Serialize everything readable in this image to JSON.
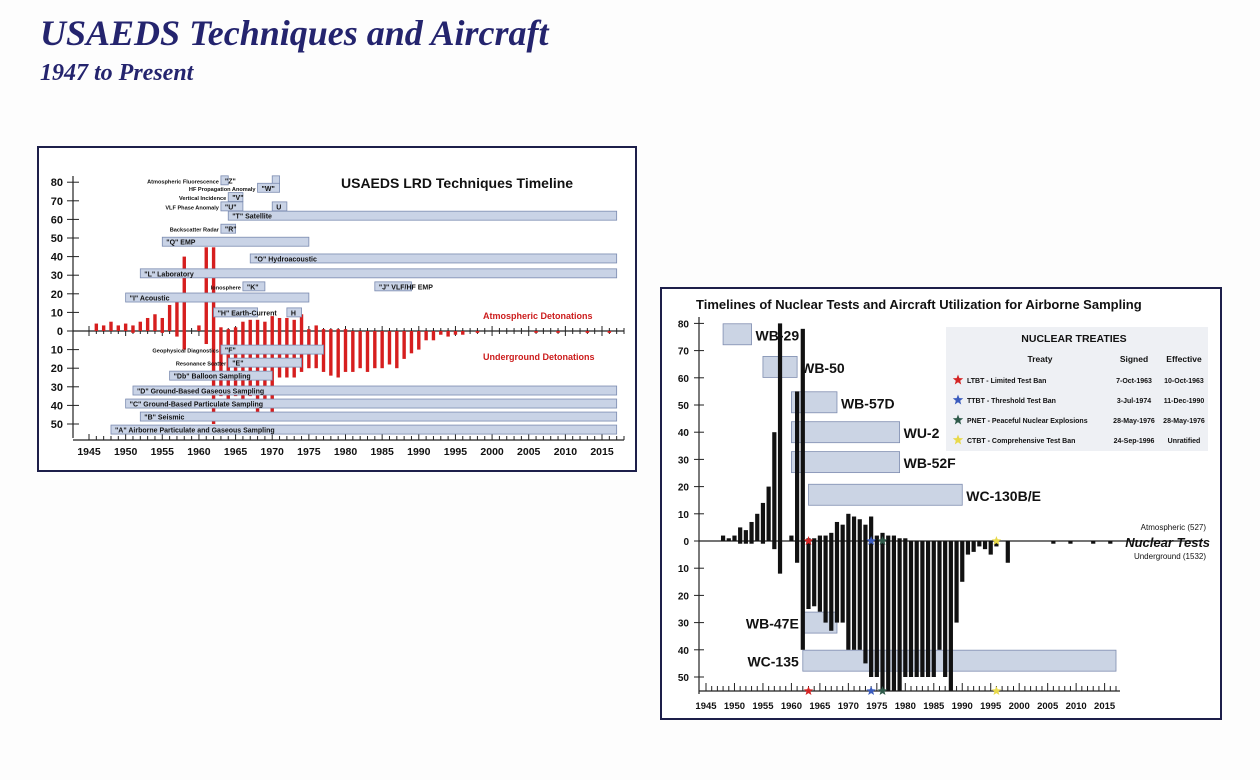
{
  "page": {
    "title": "USAEDS Techniques and Aircraft",
    "subtitle": "1947 to Present"
  },
  "chart_data": [
    {
      "type": "bar",
      "title": "USAEDS LRD Techniques Timeline",
      "xlim": [
        1945,
        2018
      ],
      "x_ticks": [
        1945,
        1950,
        1955,
        1960,
        1965,
        1970,
        1975,
        1980,
        1985,
        1990,
        1995,
        2000,
        2005,
        2010,
        2015
      ],
      "y_up_ticks": [
        80,
        70,
        60,
        50,
        40,
        30,
        20,
        10,
        0
      ],
      "y_down_ticks": [
        10,
        20,
        30,
        40,
        50
      ],
      "atmospheric_label": "Atmospheric Detonations",
      "underground_label": "Underground Detonations",
      "atmospheric": {
        "years": [
          1946,
          1947,
          1948,
          1949,
          1950,
          1951,
          1952,
          1953,
          1954,
          1955,
          1956,
          1957,
          1958,
          1959,
          1960,
          1961,
          1962,
          1963,
          1964,
          1965,
          1966,
          1967,
          1968,
          1969,
          1970,
          1971,
          1972,
          1973,
          1974,
          1975,
          1976,
          1977,
          1978,
          1979,
          1980
        ],
        "values": [
          4,
          3,
          5,
          3,
          4,
          3,
          5,
          7,
          9,
          7,
          14,
          18,
          40,
          0,
          3,
          45,
          45,
          2,
          1,
          2,
          5,
          6,
          6,
          5,
          8,
          7,
          7,
          6,
          9,
          1,
          3,
          1,
          1,
          1,
          1
        ]
      },
      "underground": {
        "years": [
          1951,
          1955,
          1957,
          1958,
          1961,
          1962,
          1963,
          1964,
          1965,
          1966,
          1967,
          1968,
          1969,
          1970,
          1971,
          1972,
          1973,
          1974,
          1975,
          1976,
          1977,
          1978,
          1979,
          1980,
          1981,
          1982,
          1983,
          1984,
          1985,
          1986,
          1987,
          1988,
          1989,
          1990,
          1991,
          1992,
          1993,
          1994,
          1995,
          1996,
          1998,
          2006,
          2009,
          2013,
          2016
        ],
        "values": [
          1,
          1,
          3,
          10,
          7,
          50,
          35,
          38,
          35,
          38,
          35,
          45,
          40,
          45,
          25,
          25,
          25,
          22,
          20,
          20,
          22,
          24,
          25,
          22,
          22,
          20,
          22,
          20,
          20,
          18,
          20,
          15,
          12,
          10,
          5,
          5,
          2,
          3,
          2,
          2,
          1,
          1,
          1,
          1,
          1
        ]
      },
      "techniques": [
        {
          "label": "Atmospheric Fluorescence",
          "code": "\"Z\"",
          "start": 1963,
          "end": 1964,
          "side": "up",
          "level": 81
        },
        {
          "label": "",
          "code": "",
          "start": 1970,
          "end": 1971,
          "side": "up",
          "level": 81
        },
        {
          "label": "HF Propagation Anomaly",
          "code": "\"W\"",
          "start": 1968,
          "end": 1971,
          "side": "up",
          "level": 77
        },
        {
          "label": "Vertical Incidence",
          "code": "\"V\"",
          "start": 1964,
          "end": 1966,
          "side": "up",
          "level": 72
        },
        {
          "label": "VLF Phase Anomaly",
          "code": "\"U\"",
          "start": 1963,
          "end": 1966,
          "side": "up",
          "level": 67
        },
        {
          "label": "",
          "code": "U",
          "start": 1970,
          "end": 1972,
          "side": "up",
          "level": 67
        },
        {
          "label": "",
          "code": "\"T\" Satellite",
          "start": 1964,
          "end": 2017,
          "side": "up",
          "level": 62
        },
        {
          "label": "Backscatter Radar",
          "code": "\"R\"",
          "start": 1963,
          "end": 1965,
          "side": "up",
          "level": 55
        },
        {
          "label": "",
          "code": "\"Q\" EMP",
          "start": 1955,
          "end": 1975,
          "side": "up",
          "level": 48
        },
        {
          "label": "",
          "code": "\"O\" Hydroacoustic",
          "start": 1967,
          "end": 2017,
          "side": "up",
          "level": 39
        },
        {
          "label": "",
          "code": "\"L\" Laboratory",
          "start": 1952,
          "end": 2017,
          "side": "up",
          "level": 31
        },
        {
          "label": "Ionosphere",
          "code": "\"K\"",
          "start": 1966,
          "end": 1969,
          "side": "up",
          "level": 24
        },
        {
          "label": "",
          "code": "\"J\" VLF/HF EMP",
          "start": 1984,
          "end": 1989,
          "side": "up",
          "level": 24
        },
        {
          "label": "",
          "code": "\"I\" Acoustic",
          "start": 1950,
          "end": 1975,
          "side": "up",
          "level": 18
        },
        {
          "label": "",
          "code": "\"H\" Earth-Current",
          "start": 1962,
          "end": 1968,
          "side": "up",
          "level": 10
        },
        {
          "label": "",
          "code": "H",
          "start": 1972,
          "end": 1974,
          "side": "up",
          "level": 10
        },
        {
          "label": "Geophysical Diagnostics",
          "code": "\"F\"",
          "start": 1963,
          "end": 1977,
          "side": "down",
          "level": 10
        },
        {
          "label": "Resonance Scatter",
          "code": "\"E\"",
          "start": 1964,
          "end": 1974,
          "side": "down",
          "level": 17
        },
        {
          "label": "",
          "code": "\"Db\" Balloon Sampling",
          "start": 1956,
          "end": 1970,
          "side": "down",
          "level": 24
        },
        {
          "label": "",
          "code": "\"D\" Ground-Based Gaseous Sampling",
          "start": 1951,
          "end": 2017,
          "side": "down",
          "level": 32
        },
        {
          "label": "",
          "code": "\"C\" Ground-Based Particulate Sampling",
          "start": 1950,
          "end": 2017,
          "side": "down",
          "level": 39
        },
        {
          "label": "",
          "code": "\"B\" Seismic",
          "start": 1952,
          "end": 2017,
          "side": "down",
          "level": 46
        },
        {
          "label": "",
          "code": "\"A\" Airborne Particulate and Gaseous Sampling",
          "start": 1948,
          "end": 2017,
          "side": "down",
          "level": 53
        }
      ]
    },
    {
      "type": "bar",
      "title": "Timelines of Nuclear Tests and Aircraft Utilization for Airborne Sampling",
      "xlim": [
        1945,
        2017
      ],
      "x_ticks": [
        1945,
        1950,
        1955,
        1960,
        1965,
        1970,
        1975,
        1980,
        1985,
        1990,
        1995,
        2000,
        2005,
        2010,
        2015
      ],
      "y_up_ticks": [
        80,
        70,
        60,
        50,
        40,
        30,
        20,
        10,
        0
      ],
      "y_down_ticks": [
        10,
        20,
        30,
        40,
        50
      ],
      "series_label": "Nuclear Tests",
      "atmospheric_label": "Atmospheric (527)",
      "underground_label": "Underground (1532)",
      "atmospheric": {
        "years": [
          1948,
          1949,
          1950,
          1951,
          1952,
          1953,
          1954,
          1955,
          1956,
          1957,
          1958,
          1959,
          1960,
          1961,
          1962,
          1963,
          1964,
          1965,
          1966,
          1967,
          1968,
          1969,
          1970,
          1971,
          1972,
          1973,
          1974,
          1975,
          1976,
          1977,
          1978,
          1979,
          1980
        ],
        "values": [
          2,
          1,
          2,
          5,
          4,
          7,
          10,
          14,
          20,
          40,
          80,
          0,
          2,
          55,
          78,
          1,
          1,
          2,
          2,
          3,
          7,
          6,
          10,
          9,
          8,
          6,
          9,
          2,
          3,
          2,
          2,
          1,
          1
        ]
      },
      "underground": {
        "years": [
          1951,
          1952,
          1953,
          1955,
          1957,
          1958,
          1961,
          1962,
          1963,
          1964,
          1965,
          1966,
          1967,
          1968,
          1969,
          1970,
          1971,
          1972,
          1973,
          1974,
          1975,
          1976,
          1977,
          1978,
          1979,
          1980,
          1981,
          1982,
          1983,
          1984,
          1985,
          1986,
          1987,
          1988,
          1989,
          1990,
          1991,
          1992,
          1993,
          1994,
          1995,
          1996,
          1998,
          2006,
          2009,
          2013,
          2016
        ],
        "values": [
          1,
          1,
          1,
          1,
          3,
          12,
          8,
          40,
          25,
          24,
          26,
          30,
          33,
          30,
          30,
          40,
          40,
          40,
          45,
          50,
          50,
          55,
          55,
          55,
          55,
          50,
          50,
          50,
          50,
          50,
          50,
          40,
          50,
          55,
          30,
          15,
          5,
          4,
          2,
          3,
          5,
          2,
          8,
          1,
          1,
          1,
          1
        ]
      },
      "aircraft": [
        {
          "name": "WB-29",
          "start": 1948,
          "end": 1953,
          "level": 76
        },
        {
          "name": "WB-50",
          "start": 1955,
          "end": 1961,
          "level": 64
        },
        {
          "name": "WB-57D",
          "start": 1960,
          "end": 1968,
          "level": 51
        },
        {
          "name": "WU-2",
          "start": 1960,
          "end": 1979,
          "level": 40
        },
        {
          "name": "WB-52F",
          "start": 1960,
          "end": 1979,
          "level": 29
        },
        {
          "name": "WC-130B/E",
          "start": 1963,
          "end": 1990,
          "level": 17
        },
        {
          "name": "WB-47E",
          "start": 1962,
          "end": 1968,
          "side": "down",
          "level": 30
        },
        {
          "name": "WC-135",
          "start": 1962,
          "end": 2017,
          "side": "down",
          "level": 44
        }
      ],
      "treaty_markers": [
        {
          "year": 1963,
          "color": "#d42424"
        },
        {
          "year": 1974,
          "color": "#3a5bbd"
        },
        {
          "year": 1976,
          "color": "#2f5a4a"
        },
        {
          "year": 1996,
          "color": "#e8d94a"
        }
      ],
      "treaties_table": {
        "title": "NUCLEAR TREATIES",
        "headers": [
          "Treaty",
          "Signed",
          "Effective"
        ],
        "rows": [
          {
            "treaty": "LTBT - Limited Test Ban",
            "signed": "7-Oct-1963",
            "effective": "10-Oct-1963",
            "color": "#d42424"
          },
          {
            "treaty": "TTBT - Threshold Test Ban",
            "signed": "3-Jul-1974",
            "effective": "11-Dec-1990",
            "color": "#3a5bbd"
          },
          {
            "treaty": "PNET - Peaceful Nuclear Explosions",
            "signed": "28-May-1976",
            "effective": "28-May-1976",
            "color": "#2f5a4a"
          },
          {
            "treaty": "CTBT - Comprehensive Test Ban",
            "signed": "24-Sep-1996",
            "effective": "Unratified",
            "color": "#e8d94a"
          }
        ]
      }
    }
  ]
}
